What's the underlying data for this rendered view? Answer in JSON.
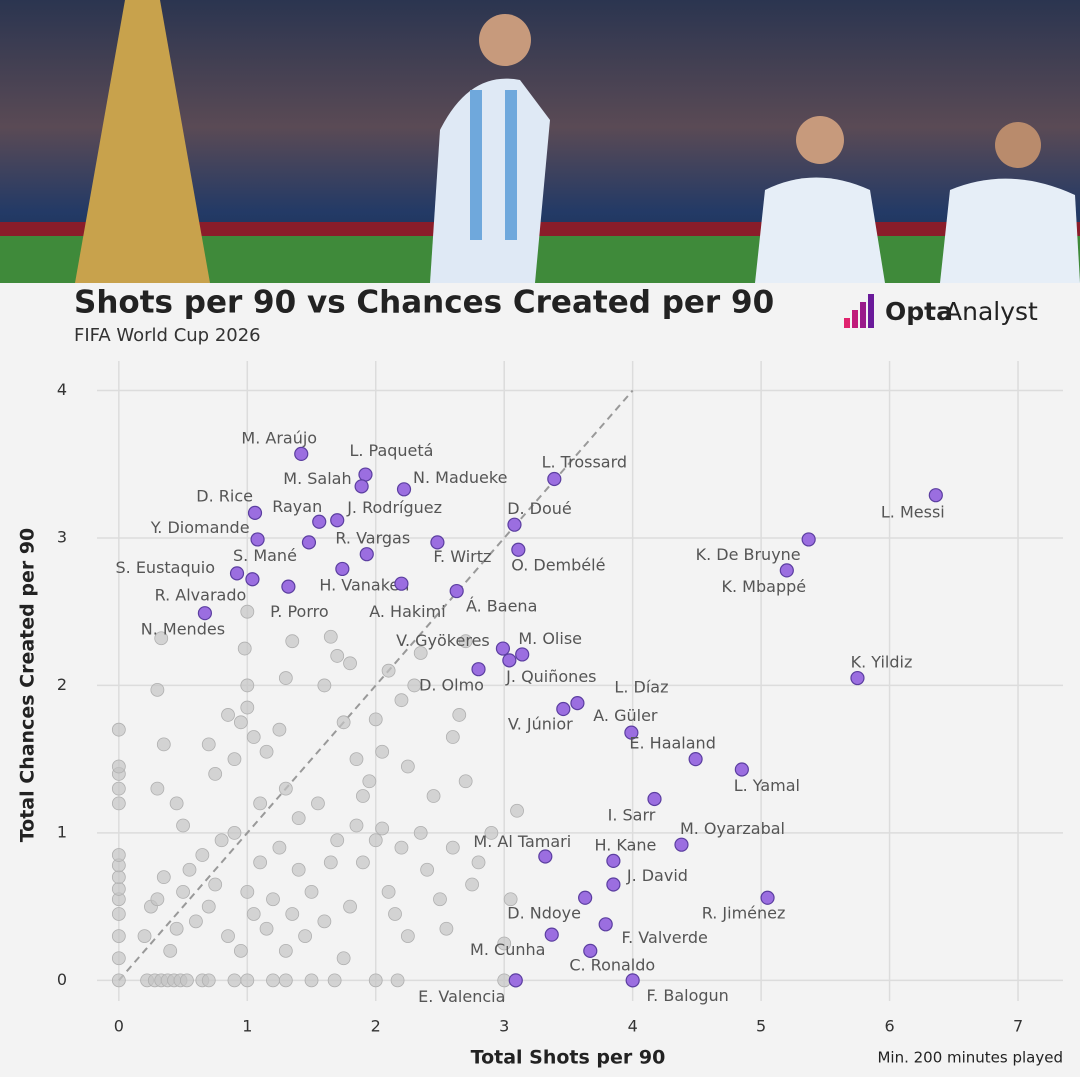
{
  "logo": {
    "bold": "Opta",
    "light": "Analyst"
  },
  "chart_data": {
    "type": "scatter",
    "title": "Shots per 90 vs Chances Created per 90",
    "subtitle": "FIFA World Cup 2026",
    "x_label": "Total Shots per 90",
    "y_label": "Total Chances Created per 90",
    "note": "Min. 200 minutes played",
    "xlim": [
      -0.17,
      7.35
    ],
    "ylim": [
      -0.14,
      4.2
    ],
    "xticks": [
      0,
      1,
      2,
      3,
      4,
      5,
      6,
      7
    ],
    "yticks": [
      0,
      1,
      2,
      3,
      4
    ],
    "grid": true,
    "reference_line": {
      "x": [
        0,
        4
      ],
      "y": [
        0,
        4
      ],
      "color": "#999999"
    },
    "series": [
      {
        "color": "#c4c4c4",
        "x": [
          0,
          0.22,
          0.28,
          0.33,
          0.38,
          0.43,
          0.48,
          0.53,
          0.65,
          0.7,
          0.9,
          1.0,
          1.2,
          1.3,
          1.5,
          1.68,
          2.0,
          2.17,
          3.0,
          0,
          0,
          0,
          0,
          0,
          0,
          0,
          0,
          0,
          0,
          0,
          0,
          0,
          0.2,
          0.25,
          0.3,
          0.35,
          0.4,
          0.45,
          0.5,
          0.55,
          0.6,
          0.65,
          0.7,
          0.75,
          0.8,
          0.85,
          0.9,
          0.95,
          1.0,
          1.05,
          1.1,
          1.15,
          1.2,
          1.25,
          1.3,
          1.35,
          1.4,
          1.45,
          1.5,
          1.55,
          1.6,
          1.65,
          1.7,
          1.75,
          1.8,
          1.85,
          1.9,
          1.95,
          2.0,
          2.05,
          2.1,
          2.15,
          2.2,
          2.25,
          2.35,
          2.4,
          2.45,
          2.5,
          2.6,
          2.7,
          2.75,
          2.8,
          2.9,
          3.05,
          3.1,
          3.0,
          2.55,
          0.3,
          0.3,
          0.35,
          0.45,
          0.5,
          0.7,
          0.75,
          0.85,
          0.9,
          0.95,
          1.0,
          1.0,
          0.98,
          1.05,
          1.1,
          1.15,
          1.25,
          1.3,
          1.35,
          1.3,
          1.4,
          1.6,
          1.65,
          1.7,
          1.75,
          1.8,
          1.85,
          1.9,
          2.0,
          2.05,
          2.1,
          2.2,
          2.3,
          2.25,
          2.6,
          2.65,
          2.35,
          2.7,
          1.0,
          0.33
        ],
        "values": [
          0,
          0,
          0,
          0,
          0,
          0,
          0,
          0,
          0,
          0,
          0,
          0,
          0,
          0,
          0,
          0,
          0,
          0,
          0,
          0.15,
          0.3,
          0.45,
          0.55,
          0.62,
          0.7,
          0.78,
          0.85,
          1.2,
          1.3,
          1.4,
          1.45,
          1.7,
          0.3,
          0.5,
          0.55,
          0.7,
          0.2,
          0.35,
          0.6,
          0.75,
          0.4,
          0.85,
          0.5,
          0.65,
          0.95,
          0.3,
          1.0,
          0.2,
          0.6,
          0.45,
          0.8,
          0.35,
          0.55,
          0.9,
          0.2,
          0.45,
          0.75,
          0.3,
          0.6,
          1.2,
          0.4,
          0.8,
          0.95,
          0.15,
          0.5,
          1.05,
          0.8,
          1.35,
          0.95,
          1.03,
          0.6,
          0.45,
          0.9,
          0.3,
          1.0,
          0.75,
          1.25,
          0.55,
          0.9,
          1.35,
          0.65,
          0.8,
          1.0,
          0.55,
          1.15,
          0.25,
          0.35,
          1.97,
          1.3,
          1.6,
          1.2,
          1.05,
          1.6,
          1.4,
          1.8,
          1.5,
          1.75,
          1.85,
          2.0,
          2.25,
          1.65,
          1.2,
          1.55,
          1.7,
          2.05,
          2.3,
          1.3,
          1.1,
          2.0,
          2.33,
          2.2,
          1.75,
          2.15,
          1.5,
          1.25,
          1.77,
          1.55,
          2.1,
          1.9,
          2.0,
          1.45,
          1.65,
          1.8,
          2.22,
          2.3,
          2.5,
          2.32
        ]
      },
      {
        "color": "#9b6ee0",
        "labels": [
          "M. Araújo",
          "L. Paquetá",
          "M. Salah",
          "N. Madueke",
          "L. Trossard",
          "D. Rice",
          "Rayan",
          "J. Rodríguez",
          "D. Doué",
          "Y. Diomande",
          "S. Mané",
          "R. Vargas",
          "F. Wirtz",
          "O. Dembélé",
          "K. De Bruyne",
          "L. Messi",
          "K. Mbappé",
          "S. Eustaquio",
          "R. Alvarado",
          "H. Vanaken",
          "P. Porro",
          "A. Hakimi",
          "Á. Baena",
          "N. Mendes",
          "V. Gyökeres",
          "M. Olise",
          "J. Quiñones",
          "D. Olmo",
          "K. Yildiz",
          "L. Díaz",
          "V. Júnior",
          "A. Güler",
          "E. Haaland",
          "L. Yamal",
          "I. Sarr",
          "M. Oyarzabal",
          "M. Al Tamari",
          "H. Kane",
          "J. David",
          "R. Jiménez",
          "D. Ndoye",
          "F. Valverde",
          "M. Cunha",
          "C. Ronaldo",
          "E. Valencia",
          "F. Balogun"
        ],
        "x": [
          1.42,
          1.92,
          1.89,
          2.22,
          3.39,
          1.06,
          1.56,
          1.7,
          3.08,
          1.08,
          1.48,
          1.93,
          2.48,
          3.11,
          5.37,
          6.36,
          5.2,
          0.92,
          1.04,
          1.74,
          1.32,
          2.2,
          2.63,
          0.67,
          2.99,
          3.14,
          3.04,
          2.8,
          5.75,
          3.57,
          3.46,
          3.99,
          4.49,
          4.85,
          4.17,
          4.38,
          3.32,
          3.85,
          3.85,
          5.05,
          3.63,
          3.79,
          3.37,
          3.67,
          3.09,
          4.0
        ],
        "values": [
          3.57,
          3.43,
          3.35,
          3.33,
          3.4,
          3.17,
          3.11,
          3.12,
          3.09,
          2.99,
          2.97,
          2.89,
          2.97,
          2.92,
          2.99,
          3.29,
          2.78,
          2.76,
          2.72,
          2.79,
          2.67,
          2.69,
          2.64,
          2.49,
          2.25,
          2.21,
          2.17,
          2.11,
          2.05,
          1.88,
          1.84,
          1.68,
          1.5,
          1.43,
          1.23,
          0.92,
          0.84,
          0.81,
          0.65,
          0.56,
          0.56,
          0.38,
          0.31,
          0.2,
          0,
          0
        ]
      }
    ]
  }
}
